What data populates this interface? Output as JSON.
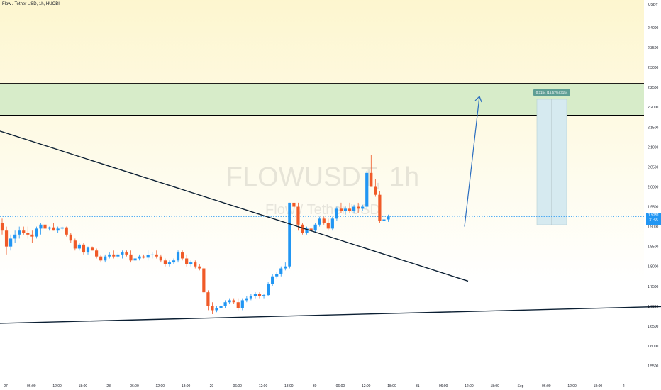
{
  "header": {
    "title": "Flow / Tether USD, 1h, HUOBI"
  },
  "axis": {
    "currency": "USDT"
  },
  "watermark": {
    "symbol": "FLOWUSDT, 1h",
    "description": "Flow / Tether USD"
  },
  "price_badge": {
    "price": "1.9251",
    "countdown": "31:55"
  },
  "measure_label": "0.3154 (16.57%) 3154",
  "colors": {
    "up": "#2196f3",
    "down": "#f05a28",
    "background_top": "#fdf6cf",
    "background_bottom": "#ffffff",
    "resistance_zone": "#d7ecc9",
    "measure_zone": "#d6eaf0",
    "line": "#0b1f33",
    "arrow": "#2a6dbf",
    "price_line": "#2196f3"
  },
  "chart_data": {
    "type": "candlestick",
    "symbol": "FLOWUSDT",
    "interval": "1h",
    "exchange": "HUOBI",
    "ylim": [
      1.52,
      2.52
    ],
    "y_ticks": [
      "2.4000",
      "2.3500",
      "2.3000",
      "2.2500",
      "2.2000",
      "2.1500",
      "2.1000",
      "2.0500",
      "2.0000",
      "1.9500",
      "1.9000",
      "1.8500",
      "1.8000",
      "1.7500",
      "1.7000",
      "1.6500",
      "1.6000",
      "1.5500"
    ],
    "x_ticks": [
      "27",
      "06:00",
      "12:00",
      "18:00",
      "28",
      "06:00",
      "12:00",
      "18:00",
      "29",
      "06:00",
      "12:00",
      "18:00",
      "30",
      "06:00",
      "12:00",
      "18:00",
      "31",
      "06:00",
      "12:00",
      "18:00",
      "Sep",
      "06:00",
      "12:00",
      "18:00",
      "2"
    ],
    "candles": [
      [
        1.91,
        1.92,
        1.88,
        1.89
      ],
      [
        1.89,
        1.9,
        1.83,
        1.85
      ],
      [
        1.85,
        1.88,
        1.84,
        1.87
      ],
      [
        1.87,
        1.89,
        1.86,
        1.88
      ],
      [
        1.88,
        1.9,
        1.87,
        1.89
      ],
      [
        1.89,
        1.9,
        1.88,
        1.885
      ],
      [
        1.885,
        1.9,
        1.87,
        1.88
      ],
      [
        1.88,
        1.89,
        1.86,
        1.875
      ],
      [
        1.875,
        1.9,
        1.87,
        1.895
      ],
      [
        1.895,
        1.91,
        1.88,
        1.905
      ],
      [
        1.905,
        1.91,
        1.89,
        1.895
      ],
      [
        1.895,
        1.9,
        1.89,
        1.898
      ],
      [
        1.898,
        1.91,
        1.89,
        1.89
      ],
      [
        1.89,
        1.9,
        1.885,
        1.895
      ],
      [
        1.895,
        1.9,
        1.89,
        1.898
      ],
      [
        1.898,
        1.9,
        1.875,
        1.88
      ],
      [
        1.88,
        1.885,
        1.86,
        1.865
      ],
      [
        1.865,
        1.87,
        1.84,
        1.845
      ],
      [
        1.845,
        1.86,
        1.84,
        1.855
      ],
      [
        1.855,
        1.86,
        1.83,
        1.835
      ],
      [
        1.835,
        1.85,
        1.83,
        1.847
      ],
      [
        1.847,
        1.85,
        1.84,
        1.84
      ],
      [
        1.84,
        1.845,
        1.82,
        1.825
      ],
      [
        1.825,
        1.83,
        1.81,
        1.815
      ],
      [
        1.815,
        1.83,
        1.81,
        1.825
      ],
      [
        1.825,
        1.835,
        1.82,
        1.83
      ],
      [
        1.83,
        1.84,
        1.82,
        1.825
      ],
      [
        1.825,
        1.835,
        1.82,
        1.83
      ],
      [
        1.83,
        1.84,
        1.82,
        1.835
      ],
      [
        1.835,
        1.84,
        1.825,
        1.83
      ],
      [
        1.83,
        1.84,
        1.81,
        1.815
      ],
      [
        1.815,
        1.825,
        1.81,
        1.82
      ],
      [
        1.82,
        1.83,
        1.815,
        1.825
      ],
      [
        1.825,
        1.83,
        1.82,
        1.822
      ],
      [
        1.822,
        1.84,
        1.815,
        1.828
      ],
      [
        1.828,
        1.835,
        1.82,
        1.83
      ],
      [
        1.83,
        1.84,
        1.82,
        1.825
      ],
      [
        1.825,
        1.83,
        1.81,
        1.815
      ],
      [
        1.815,
        1.82,
        1.8,
        1.805
      ],
      [
        1.805,
        1.815,
        1.8,
        1.81
      ],
      [
        1.81,
        1.82,
        1.805,
        1.815
      ],
      [
        1.815,
        1.84,
        1.81,
        1.835
      ],
      [
        1.835,
        1.84,
        1.815,
        1.82
      ],
      [
        1.82,
        1.83,
        1.8,
        1.805
      ],
      [
        1.805,
        1.815,
        1.8,
        1.81
      ],
      [
        1.81,
        1.815,
        1.795,
        1.8
      ],
      [
        1.8,
        1.805,
        1.79,
        1.795
      ],
      [
        1.795,
        1.8,
        1.73,
        1.735
      ],
      [
        1.735,
        1.74,
        1.69,
        1.7
      ],
      [
        1.7,
        1.71,
        1.68,
        1.69
      ],
      [
        1.69,
        1.7,
        1.685,
        1.695
      ],
      [
        1.695,
        1.705,
        1.69,
        1.7
      ],
      [
        1.7,
        1.715,
        1.695,
        1.71
      ],
      [
        1.71,
        1.72,
        1.705,
        1.715
      ],
      [
        1.715,
        1.72,
        1.705,
        1.71
      ],
      [
        1.71,
        1.72,
        1.69,
        1.695
      ],
      [
        1.695,
        1.72,
        1.69,
        1.715
      ],
      [
        1.715,
        1.725,
        1.71,
        1.72
      ],
      [
        1.72,
        1.73,
        1.715,
        1.725
      ],
      [
        1.725,
        1.735,
        1.72,
        1.73
      ],
      [
        1.73,
        1.735,
        1.72,
        1.725
      ],
      [
        1.725,
        1.73,
        1.72,
        1.728
      ],
      [
        1.728,
        1.76,
        1.725,
        1.755
      ],
      [
        1.755,
        1.78,
        1.75,
        1.775
      ],
      [
        1.775,
        1.785,
        1.77,
        1.78
      ],
      [
        1.78,
        1.8,
        1.775,
        1.795
      ],
      [
        1.795,
        1.81,
        1.79,
        1.8
      ],
      [
        1.8,
        1.96,
        1.795,
        1.96
      ],
      [
        1.96,
        2.06,
        1.94,
        1.95
      ],
      [
        1.95,
        1.96,
        1.89,
        1.905
      ],
      [
        1.905,
        1.91,
        1.88,
        1.885
      ],
      [
        1.885,
        1.9,
        1.88,
        1.895
      ],
      [
        1.895,
        1.91,
        1.885,
        1.89
      ],
      [
        1.89,
        1.91,
        1.885,
        1.905
      ],
      [
        1.905,
        1.925,
        1.9,
        1.92
      ],
      [
        1.92,
        1.925,
        1.905,
        1.91
      ],
      [
        1.91,
        1.92,
        1.89,
        1.895
      ],
      [
        1.895,
        1.925,
        1.89,
        1.92
      ],
      [
        1.92,
        1.95,
        1.915,
        1.945
      ],
      [
        1.945,
        1.96,
        1.935,
        1.94
      ],
      [
        1.94,
        1.95,
        1.93,
        1.945
      ],
      [
        1.945,
        1.96,
        1.935,
        1.94
      ],
      [
        1.94,
        1.955,
        1.935,
        1.95
      ],
      [
        1.95,
        1.96,
        1.935,
        1.945
      ],
      [
        1.945,
        1.955,
        1.94,
        1.95
      ],
      [
        1.95,
        2.04,
        1.945,
        2.035
      ],
      [
        2.035,
        2.08,
        2.0,
        2.0
      ],
      [
        2.0,
        2.02,
        1.975,
        1.98
      ],
      [
        1.98,
        1.99,
        1.91,
        1.915
      ],
      [
        1.915,
        1.925,
        1.905,
        1.918
      ],
      [
        1.918,
        1.93,
        1.912,
        1.925
      ]
    ],
    "last_price": 1.9251,
    "resistance_zone": [
      2.18,
      2.26
    ],
    "trendlines": [
      {
        "name": "descending-trendline",
        "from": [
          0,
          2.14
        ],
        "to": [
          660,
          1.763
        ]
      },
      {
        "name": "ascending-trendline",
        "from": [
          0,
          1.657
        ],
        "to": [
          932,
          1.699
        ]
      }
    ],
    "projection": {
      "from": 1.9,
      "to": 2.22
    },
    "measure": {
      "from": 1.9046,
      "to": 2.22,
      "label": "0.3154 (16.57%) 3154"
    }
  }
}
